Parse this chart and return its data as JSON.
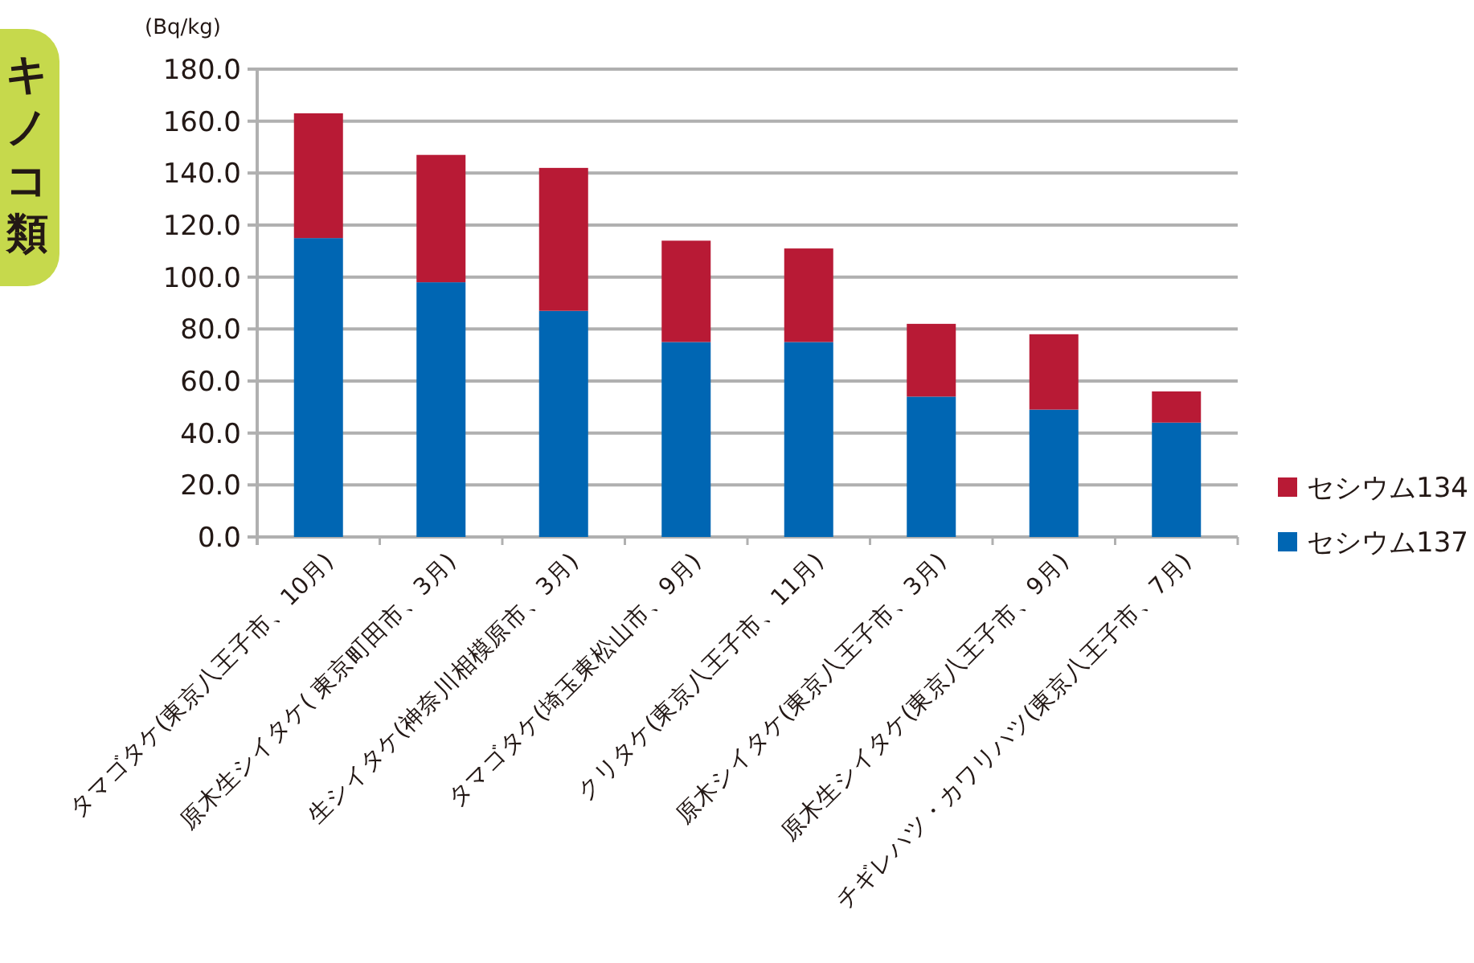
{
  "chart_data": {
    "type": "bar",
    "title": "キノコ類",
    "ylabel": "(Bq/kg)",
    "categories": [
      "タマゴタケ(東京八王子市、10月)",
      "原木生シイタケ( 東京町田市、3月)",
      "生シイタケ(神奈川相模原市、3月)",
      "タマゴタケ(埼玉東松山市、9月)",
      "クリタケ(東京八王子市、11月)",
      "原木シイタケ(東京八王子市、3月)",
      "原木生シイタケ(東京八王子市、9月)",
      "チギレハツ・カワリハツ(東京八王子市、7月)"
    ],
    "series": [
      {
        "name": "セシウム137",
        "color": "#0066b3",
        "values": [
          115,
          98,
          87,
          75,
          75,
          54,
          49,
          44
        ]
      },
      {
        "name": "セシウム134",
        "color": "#b81a35",
        "values": [
          48,
          49,
          55,
          39,
          36,
          28,
          29,
          12
        ]
      }
    ],
    "stacked": true,
    "ylim": [
      0,
      180
    ],
    "yticks": [
      {
        "value": 0,
        "label": "0.0"
      },
      {
        "value": 20,
        "label": "20.0"
      },
      {
        "value": 40,
        "label": "40.0"
      },
      {
        "value": 60,
        "label": "60.0"
      },
      {
        "value": 80,
        "label": "80.0"
      },
      {
        "value": 100,
        "label": "100.0"
      },
      {
        "value": 120,
        "label": "120.0"
      },
      {
        "value": 140,
        "label": "140.0"
      },
      {
        "value": 160,
        "label": "160.0"
      },
      {
        "value": 180,
        "label": "180.0"
      }
    ],
    "grid": "y",
    "legend": "right"
  }
}
